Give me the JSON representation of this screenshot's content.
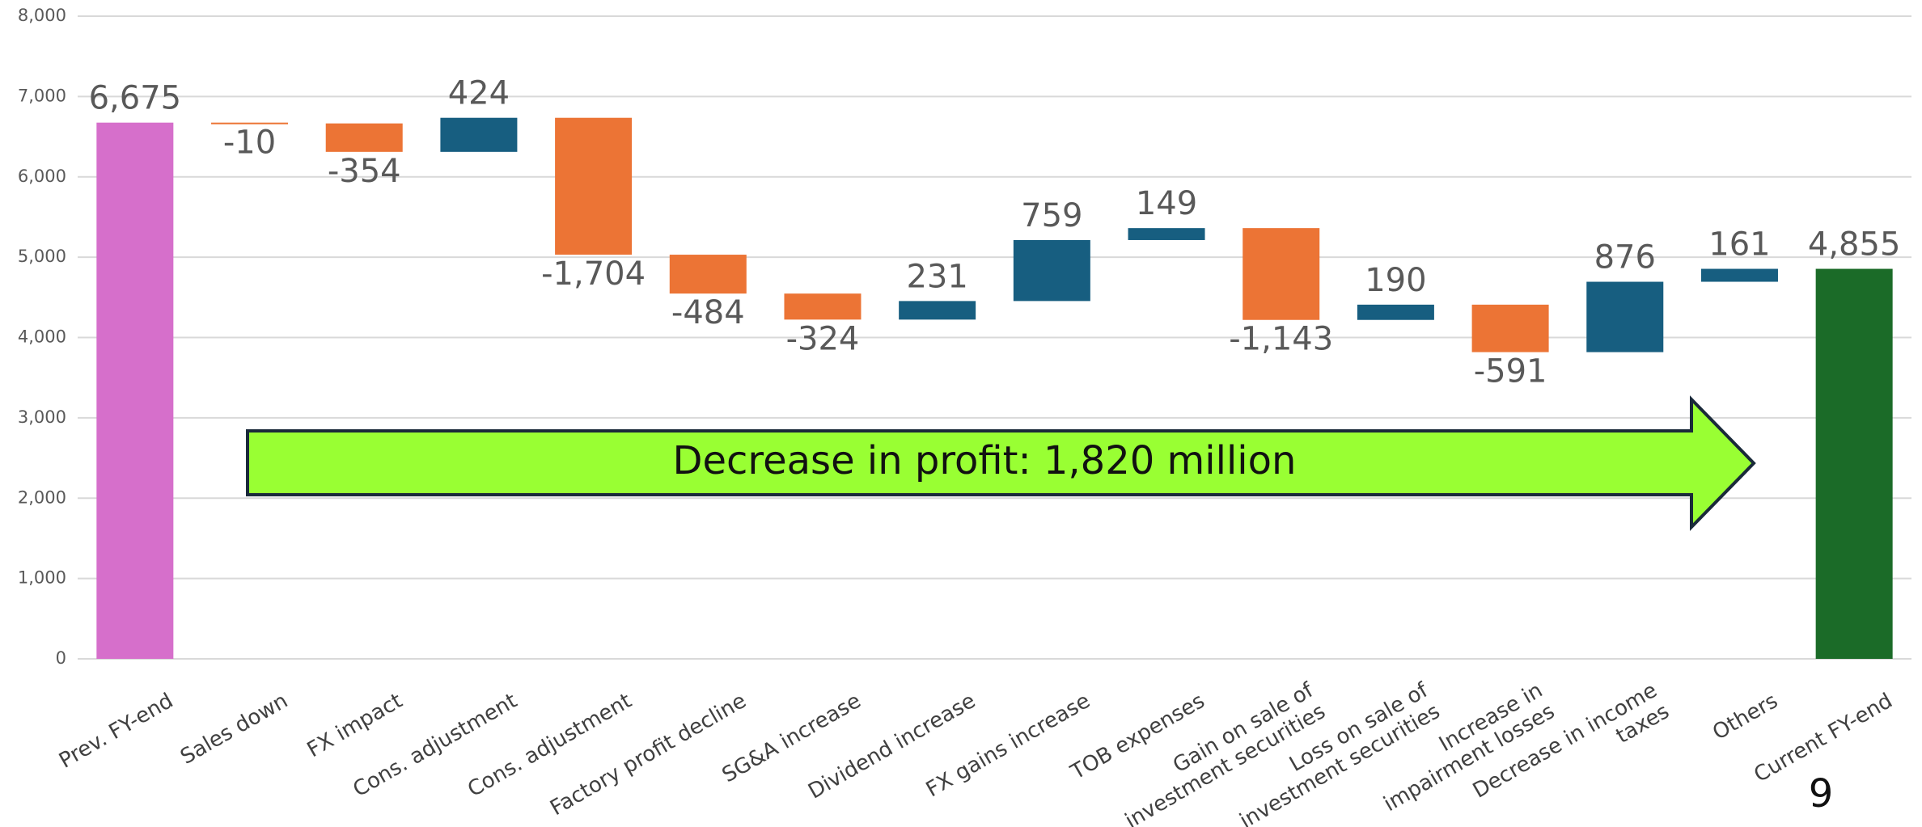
{
  "chart_data": {
    "type": "waterfall",
    "categories": [
      "Prev. FY-end",
      "Sales down",
      "FX impact",
      "Cons. adjustment",
      "Cons. adjustment",
      "Factory profit decline",
      "SG&A increase",
      "Dividend increase",
      "FX gains increase",
      "TOB expenses",
      "Gain on sale of\ninvestment securities",
      "Loss on sale of\ninvestment securities",
      "Increase in\nimpairment losses",
      "Decrease in income\ntaxes",
      "Others",
      "Current FY-end"
    ],
    "values": [
      6675,
      -10,
      -354,
      424,
      -1704,
      -484,
      -324,
      231,
      759,
      149,
      -1143,
      190,
      -591,
      876,
      161,
      4855
    ],
    "value_labels": [
      "6,675",
      "-10",
      "-354",
      "424",
      "-1,704",
      "-484",
      "-324",
      "231",
      "759",
      "149",
      "-1,143",
      "190",
      "-591",
      "876",
      "161",
      "4,855"
    ],
    "measure": [
      "absolute",
      "relative",
      "relative",
      "relative",
      "relative",
      "relative",
      "relative",
      "relative",
      "relative",
      "relative",
      "relative",
      "relative",
      "relative",
      "relative",
      "relative",
      "total"
    ],
    "colors": [
      "#d66fcb",
      "#ec7435",
      "#ec7435",
      "#175e80",
      "#ec7435",
      "#ec7435",
      "#ec7435",
      "#175e80",
      "#175e80",
      "#175e80",
      "#ec7435",
      "#175e80",
      "#ec7435",
      "#175e80",
      "#175e80",
      "#1b6b28"
    ],
    "ylim": [
      0,
      8000
    ],
    "yticks": [
      0,
      {
        "value": 1000,
        "label": "1,000"
      },
      {
        "value": 2000,
        "label": "2,000"
      },
      {
        "value": 3000,
        "label": "3,000"
      },
      {
        "value": 4000,
        "label": "4,000"
      },
      {
        "value": 5000,
        "label": "5,000"
      },
      {
        "value": 6000,
        "label": "6,000"
      },
      {
        "value": 7000,
        "label": "7,000"
      },
      {
        "value": 8000,
        "label": "8,000"
      }
    ],
    "grid": true,
    "annotation": "Decrease in profit: 1,820 million",
    "page_number": "9"
  }
}
